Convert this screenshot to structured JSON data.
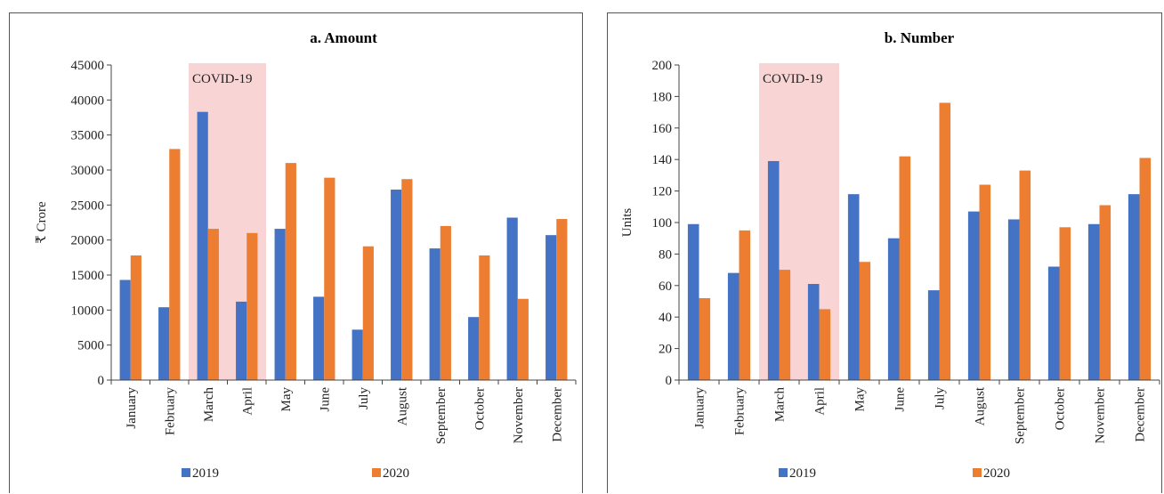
{
  "colors": {
    "s2019": "#4472c4",
    "s2020": "#ed7d31",
    "covid": "#f8d4d4"
  },
  "chart_data": [
    {
      "type": "bar",
      "title": "a. Amount",
      "ylabel": "₹ Crore",
      "xlabel": "",
      "ylim": [
        0,
        45000
      ],
      "yticks": [
        0,
        5000,
        10000,
        15000,
        20000,
        25000,
        30000,
        35000,
        40000,
        45000
      ],
      "categories": [
        "January",
        "February",
        "March",
        "April",
        "May",
        "June",
        "July",
        "August",
        "September",
        "October",
        "November",
        "December"
      ],
      "series": [
        {
          "name": "2019",
          "values": [
            14300,
            10400,
            38300,
            11200,
            21600,
            11900,
            7200,
            27200,
            18800,
            9000,
            23200,
            20700
          ]
        },
        {
          "name": "2020",
          "values": [
            17800,
            33000,
            21600,
            21000,
            31000,
            28900,
            19100,
            28700,
            22000,
            17800,
            11600,
            23000
          ]
        }
      ],
      "annotation": {
        "label": "COVID-19",
        "from": "March",
        "to": "April"
      },
      "legend_position": "bottom",
      "grid": false
    },
    {
      "type": "bar",
      "title": "b. Number",
      "ylabel": "Units",
      "xlabel": "",
      "ylim": [
        0,
        200
      ],
      "yticks": [
        0,
        20,
        40,
        60,
        80,
        100,
        120,
        140,
        160,
        180,
        200
      ],
      "categories": [
        "January",
        "February",
        "March",
        "April",
        "May",
        "June",
        "July",
        "August",
        "September",
        "October",
        "November",
        "December"
      ],
      "series": [
        {
          "name": "2019",
          "values": [
            99,
            68,
            139,
            61,
            118,
            90,
            57,
            107,
            102,
            72,
            99,
            118
          ]
        },
        {
          "name": "2020",
          "values": [
            52,
            95,
            70,
            45,
            75,
            142,
            176,
            124,
            133,
            97,
            111,
            141
          ]
        }
      ],
      "annotation": {
        "label": "COVID-19",
        "from": "March",
        "to": "April"
      },
      "legend_position": "bottom",
      "grid": false
    }
  ]
}
